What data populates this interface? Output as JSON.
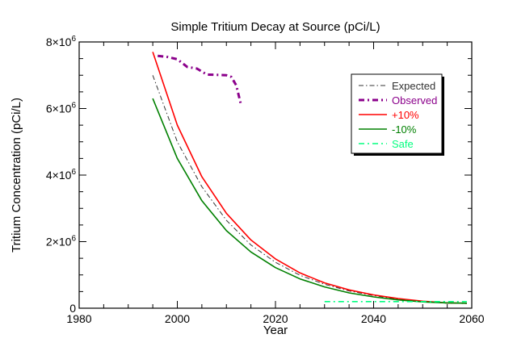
{
  "chart_data": {
    "type": "line",
    "title": "Simple Tritium Decay at Source (pCi/L)",
    "xlabel": "Year",
    "ylabel": "Tritium Concentration (pCi/L)",
    "xlim": [
      1980,
      2060
    ],
    "ylim": [
      0,
      8000000
    ],
    "x_ticks": [
      1980,
      2000,
      2020,
      2040,
      2060
    ],
    "y_ticks": [
      {
        "value": 0,
        "base": "0",
        "exp": ""
      },
      {
        "value": 2000000,
        "base": "2×10",
        "exp": "6"
      },
      {
        "value": 4000000,
        "base": "4×10",
        "exp": "6"
      },
      {
        "value": 6000000,
        "base": "6×10",
        "exp": "6"
      },
      {
        "value": 8000000,
        "base": "8×10",
        "exp": "6"
      }
    ],
    "grid": false,
    "legend_position": "top-right",
    "series": [
      {
        "name": "Expected",
        "color": "#333333",
        "style": "dash-dot-thin",
        "points": [
          [
            1995,
            7000000
          ],
          [
            2000,
            5000000
          ],
          [
            2005,
            3650000
          ],
          [
            2010,
            2640000
          ],
          [
            2015,
            1900000
          ],
          [
            2020,
            1380000
          ],
          [
            2025,
            990000
          ],
          [
            2030,
            720000
          ],
          [
            2035,
            520000
          ],
          [
            2040,
            380000
          ],
          [
            2045,
            270000
          ],
          [
            2050,
            200000
          ],
          [
            2055,
            150000
          ],
          [
            2059,
            140000
          ]
        ]
      },
      {
        "name": "Observed",
        "color": "#8B008B",
        "style": "dash-dot-thick",
        "points": [
          [
            1996,
            7580000
          ],
          [
            1998,
            7550000
          ],
          [
            2000,
            7480000
          ],
          [
            2002,
            7250000
          ],
          [
            2004,
            7200000
          ],
          [
            2006,
            7020000
          ],
          [
            2008,
            7010000
          ],
          [
            2010,
            7000000
          ],
          [
            2011,
            6950000
          ],
          [
            2012,
            6700000
          ],
          [
            2013,
            6100000
          ]
        ]
      },
      {
        "name": "+10%",
        "color": "#ff0000",
        "style": "solid",
        "points": [
          [
            1995,
            7700000
          ],
          [
            2000,
            5500000
          ],
          [
            2005,
            3950000
          ],
          [
            2010,
            2850000
          ],
          [
            2015,
            2050000
          ],
          [
            2020,
            1480000
          ],
          [
            2025,
            1060000
          ],
          [
            2030,
            760000
          ],
          [
            2035,
            550000
          ],
          [
            2040,
            400000
          ],
          [
            2045,
            290000
          ],
          [
            2050,
            210000
          ],
          [
            2055,
            160000
          ],
          [
            2059,
            150000
          ]
        ]
      },
      {
        "name": "-10%",
        "color": "#008000",
        "style": "solid",
        "points": [
          [
            1995,
            6300000
          ],
          [
            2000,
            4500000
          ],
          [
            2005,
            3230000
          ],
          [
            2010,
            2330000
          ],
          [
            2015,
            1690000
          ],
          [
            2020,
            1220000
          ],
          [
            2025,
            880000
          ],
          [
            2030,
            640000
          ],
          [
            2035,
            460000
          ],
          [
            2040,
            340000
          ],
          [
            2045,
            250000
          ],
          [
            2050,
            190000
          ],
          [
            2055,
            160000
          ],
          [
            2059,
            150000
          ]
        ]
      },
      {
        "name": "Safe",
        "color": "#00ff7f",
        "style": "dash-dot",
        "points": [
          [
            2030,
            200000
          ],
          [
            2059,
            200000
          ]
        ]
      }
    ]
  }
}
